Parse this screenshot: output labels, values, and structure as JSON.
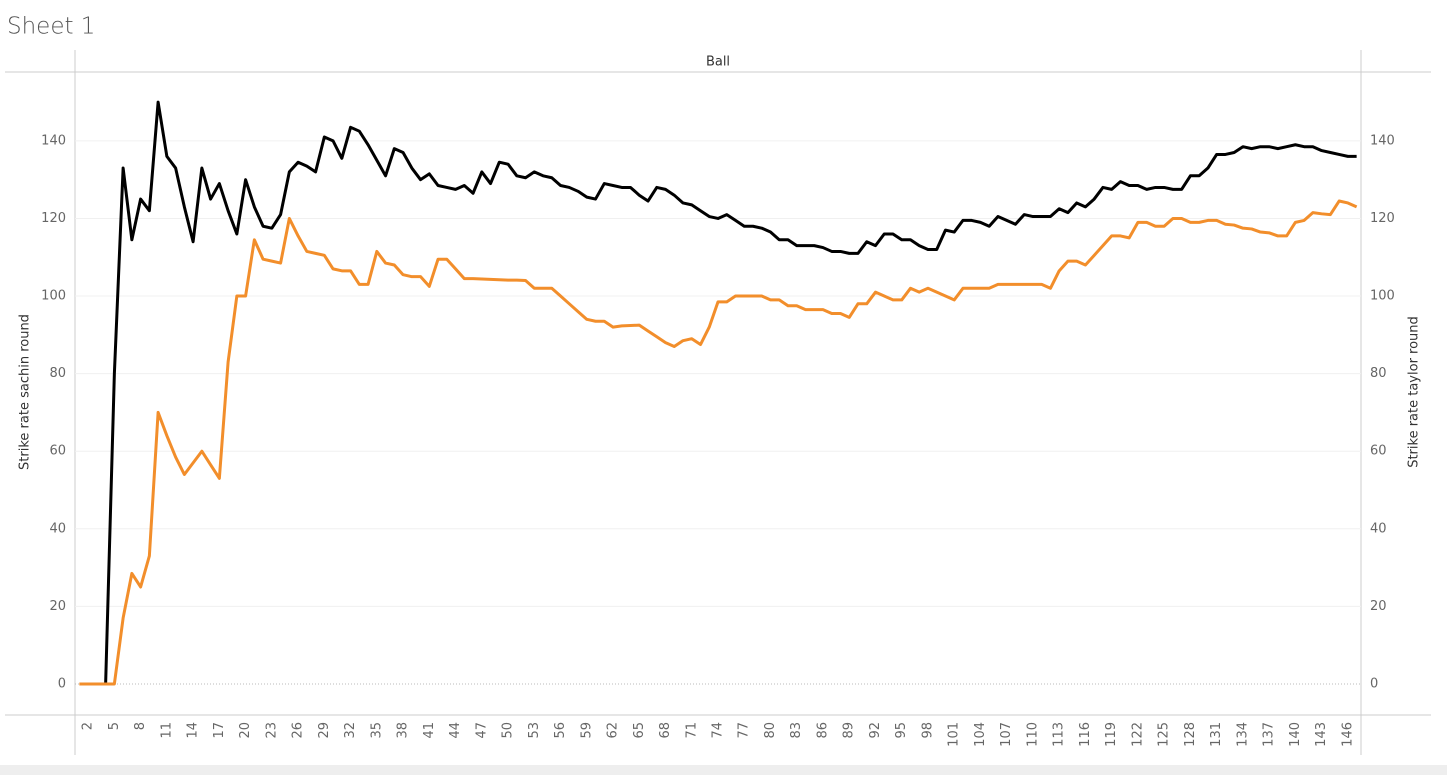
{
  "title": "Sheet 1",
  "chart_data": {
    "type": "line",
    "x_header": "Ball",
    "ylabel": "Strike rate sachin round",
    "y2label": "Strike rate taylor round",
    "x": [
      1,
      2,
      3,
      4,
      5,
      6,
      7,
      8,
      9,
      10,
      11,
      12,
      13,
      14,
      15,
      16,
      17,
      18,
      19,
      20,
      21,
      22,
      23,
      24,
      25,
      26,
      27,
      28,
      29,
      30,
      31,
      32,
      33,
      34,
      35,
      36,
      37,
      38,
      39,
      40,
      41,
      42,
      43,
      44,
      45,
      46,
      47,
      48,
      49,
      50,
      51,
      52,
      53,
      54,
      55,
      56,
      57,
      58,
      59,
      60,
      61,
      62,
      63,
      64,
      65,
      66,
      67,
      68,
      69,
      70,
      71,
      72,
      73,
      74,
      75,
      76,
      77,
      78,
      79,
      80,
      81,
      82,
      83,
      84,
      85,
      86,
      87,
      88,
      89,
      90,
      91,
      92,
      93,
      94,
      95,
      96,
      97,
      98,
      99,
      100,
      101,
      102,
      103,
      104,
      105,
      106,
      107,
      108,
      109,
      110,
      111,
      112,
      113,
      114,
      115,
      116,
      117,
      118,
      119,
      120,
      121,
      122,
      123,
      124,
      125,
      126,
      127,
      128,
      129,
      130,
      131,
      132,
      133,
      134,
      135,
      136,
      137,
      138,
      139,
      140,
      141,
      142,
      143,
      144,
      145,
      146,
      147
    ],
    "xlim": [
      0.5,
      147.5
    ],
    "xticks": [
      2,
      5,
      8,
      11,
      14,
      17,
      20,
      23,
      26,
      29,
      32,
      35,
      38,
      41,
      44,
      47,
      50,
      53,
      56,
      59,
      62,
      65,
      68,
      71,
      74,
      77,
      80,
      83,
      86,
      89,
      92,
      95,
      98,
      101,
      104,
      107,
      110,
      113,
      116,
      119,
      122,
      125,
      128,
      131,
      134,
      137,
      140,
      143,
      146
    ],
    "ylim": [
      -8,
      157.5
    ],
    "yticks": [
      0,
      20,
      40,
      60,
      80,
      100,
      120,
      140
    ],
    "y2lim": [
      -8,
      157.5
    ],
    "y2ticks": [
      0,
      20,
      40,
      60,
      80,
      100,
      120,
      140
    ],
    "grid": true,
    "series": [
      {
        "color": "#000000",
        "values": [
          null,
          null,
          null,
          0,
          80,
          133,
          114.5,
          125,
          122,
          150,
          136,
          133,
          123,
          114,
          133,
          125,
          129,
          122,
          116,
          130,
          123,
          118,
          117.5,
          121,
          132,
          134.5,
          133.5,
          132,
          141,
          140,
          135.5,
          143.5,
          142.5,
          139,
          135,
          131,
          138,
          137,
          133,
          130,
          131.5,
          128.5,
          128,
          127.5,
          128.5,
          126.5,
          132,
          129,
          134.5,
          134,
          131,
          130.5,
          132,
          131,
          130.5,
          128.5,
          128,
          127,
          125.5,
          125,
          129,
          128.5,
          128,
          128,
          126,
          124.5,
          128,
          127.5,
          126,
          124,
          123.5,
          122,
          120.5,
          120,
          121,
          119.5,
          118,
          118,
          117.5,
          116.5,
          114.5,
          114.5,
          113,
          113,
          113,
          112.5,
          111.5,
          111.5,
          111,
          111,
          114,
          113,
          116,
          116,
          114.5,
          114.5,
          113,
          112,
          112,
          117,
          116.5,
          119.5,
          119.5,
          119,
          118,
          120.5,
          119.5,
          118.5,
          121,
          120.5,
          120.5,
          120.5,
          122.5,
          121.5,
          124,
          123,
          125,
          128,
          127.5,
          129.5,
          128.5,
          128.5,
          127.5,
          128,
          128,
          127.5,
          127.5,
          131,
          131,
          133,
          136.5,
          136.5,
          137,
          138.5,
          138,
          138.5,
          138.5,
          138,
          138.5,
          139,
          138.5,
          138.5,
          137.5,
          137,
          136.5,
          136,
          136
        ]
      },
      {
        "color": "#f28e2b",
        "axis": "y2",
        "values": [
          0,
          0,
          0,
          0,
          0,
          17,
          28.5,
          25,
          33,
          70,
          64,
          58.5,
          54,
          57,
          60,
          56.5,
          53,
          83,
          100,
          100,
          114.5,
          109.5,
          109,
          108.5,
          120,
          115.5,
          111.5,
          111,
          110.5,
          107,
          106.5,
          106.5,
          103,
          103,
          111.5,
          108.5,
          108,
          105.5,
          105,
          105,
          102.5,
          109.5,
          109.5,
          107,
          104.5,
          104.5,
          104.4,
          104.3,
          104.2,
          104.1,
          104.1,
          104,
          102,
          102,
          102,
          100,
          98,
          96,
          94,
          93.5,
          93.5,
          92,
          92.3,
          92.4,
          92.5,
          91,
          89.5,
          88,
          87,
          88.5,
          89,
          87.5,
          92,
          98.5,
          98.5,
          100,
          100,
          100,
          100,
          99,
          99,
          97.5,
          97.5,
          96.5,
          96.5,
          96.5,
          95.5,
          95.5,
          94.5,
          98,
          98,
          101,
          100,
          99,
          99,
          102,
          101,
          102,
          101,
          100,
          99,
          102,
          102,
          102,
          102,
          103,
          103,
          103,
          103,
          103,
          103,
          102,
          106.5,
          109,
          109,
          108,
          110.5,
          113,
          115.5,
          115.5,
          115,
          119,
          119,
          118,
          118,
          120,
          120,
          119,
          119,
          119.5,
          119.5,
          118.5,
          118.3,
          117.5,
          117.3,
          116.5,
          116.3,
          115.5,
          115.5,
          119,
          119.5,
          121.5,
          121.2,
          121,
          124.5,
          124,
          123
        ]
      }
    ]
  }
}
